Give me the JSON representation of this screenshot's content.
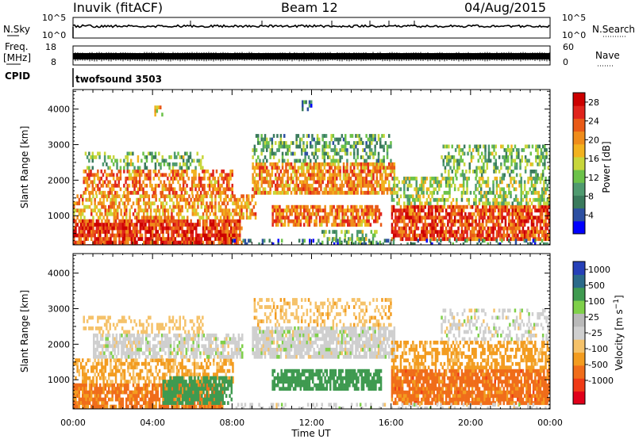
{
  "header": {
    "station": "Inuvik (fitACF)",
    "beam": "Beam 12",
    "date": "04/Aug/2015"
  },
  "strip_labels": {
    "nsky": "N.Sky",
    "nsky_top_tick": "10^5",
    "nsky_bottom_tick": "10^0",
    "nsearch": "N.Search",
    "nsearch_top_tick": "10^5",
    "nsearch_bottom_tick": "10^0",
    "freq_line1": "Freq.",
    "freq_line2": "[MHz]",
    "freq_top_tick": "18",
    "freq_bottom_tick": "8",
    "nave": "Nave",
    "nave_top_tick": "60",
    "nave_bottom_tick": "0",
    "cpid": "CPID",
    "cpid_value": "twofsound 3503"
  },
  "colors": {
    "power_scale": [
      "#0000ff",
      "#2c4fa1",
      "#3a7a5c",
      "#4f9a6f",
      "#6cc24a",
      "#c8d63b",
      "#f2b21f",
      "#ef8c1b",
      "#e95a17",
      "#e0241c",
      "#cc0000"
    ],
    "velocity_scale": [
      "#e0001a",
      "#ef3a16",
      "#f06d1a",
      "#f39c20",
      "#f5c26a",
      "#cfcfcf",
      "#b9b9b9",
      "#7fd04a",
      "#3f9a50",
      "#2b6a8a",
      "#2640b8"
    ],
    "velocity_mid": "#c4c4c4"
  },
  "chart_data": [
    {
      "type": "heatmap",
      "panel": "power",
      "ylabel": "Slant Range [km]",
      "y_ticks": [
        "1000",
        "2000",
        "3000",
        "4000"
      ],
      "ylim": [
        180,
        4550
      ],
      "x_ticks": [
        "00:00",
        "04:00",
        "08:00",
        "12:00",
        "16:00",
        "20:00",
        "00:00"
      ],
      "xlim_hours": [
        0,
        24
      ],
      "colorbar_label": "Power [dB]",
      "colorbar_ticks": [
        "4",
        "8",
        "12",
        "16",
        "20",
        "24",
        "28"
      ],
      "colorbar_range": [
        0,
        30
      ],
      "regions": [
        {
          "t0": 0.0,
          "t1": 8.5,
          "r0": 180,
          "r1": 900,
          "value": 26,
          "density": 0.85
        },
        {
          "t0": 0.0,
          "t1": 9.2,
          "r0": 900,
          "r1": 1600,
          "value": 20,
          "density": 0.6
        },
        {
          "t0": 0.5,
          "t1": 8.0,
          "r0": 1600,
          "r1": 2300,
          "value": 22,
          "density": 0.6
        },
        {
          "t0": 0.5,
          "t1": 6.5,
          "r0": 2300,
          "r1": 2800,
          "value": 11,
          "density": 0.4
        },
        {
          "t0": 9.0,
          "t1": 16.2,
          "r0": 1600,
          "r1": 2500,
          "value": 21,
          "density": 0.75
        },
        {
          "t0": 9.0,
          "t1": 16.0,
          "r0": 2500,
          "r1": 3300,
          "value": 10,
          "density": 0.45
        },
        {
          "t0": 10.0,
          "t1": 15.5,
          "r0": 750,
          "r1": 1300,
          "value": 22,
          "density": 0.75
        },
        {
          "t0": 12.5,
          "t1": 15.5,
          "r0": 250,
          "r1": 600,
          "value": 12,
          "density": 0.35
        },
        {
          "t0": 16.0,
          "t1": 24.0,
          "r0": 300,
          "r1": 1300,
          "value": 25,
          "density": 0.8
        },
        {
          "t0": 16.0,
          "t1": 24.0,
          "r0": 1300,
          "r1": 2100,
          "value": 13,
          "density": 0.55
        },
        {
          "t0": 18.5,
          "t1": 24.0,
          "r0": 2100,
          "r1": 3000,
          "value": 11,
          "density": 0.4
        },
        {
          "t0": 8.0,
          "t1": 24.0,
          "r0": 180,
          "r1": 350,
          "value": 6,
          "density": 0.25
        },
        {
          "t0": 4.0,
          "t1": 4.5,
          "r0": 3800,
          "r1": 4100,
          "value": 18,
          "density": 0.4
        },
        {
          "t0": 11.5,
          "t1": 12.0,
          "r0": 4000,
          "r1": 4250,
          "value": 6,
          "density": 0.5
        }
      ]
    },
    {
      "type": "heatmap",
      "panel": "velocity",
      "ylabel": "Slant Range [km]",
      "y_ticks": [
        "1000",
        "2000",
        "3000",
        "4000"
      ],
      "ylim": [
        180,
        4550
      ],
      "x_ticks": [
        "00:00",
        "04:00",
        "08:00",
        "12:00",
        "16:00",
        "20:00",
        "00:00"
      ],
      "xlim_hours": [
        0,
        24
      ],
      "xlabel": "Time UT",
      "colorbar_label": "Velocity [m s^-1]",
      "colorbar_ticks": [
        "-1000",
        "-500",
        "-100",
        "-25",
        "25",
        "100",
        "500",
        "1000"
      ],
      "regions": [
        {
          "t0": 0.0,
          "t1": 7.5,
          "r0": 180,
          "r1": 900,
          "value": -300,
          "density": 0.85
        },
        {
          "t0": 0.0,
          "t1": 8.0,
          "r0": 900,
          "r1": 1600,
          "value": -120,
          "density": 0.55
        },
        {
          "t0": 1.0,
          "t1": 8.5,
          "r0": 1600,
          "r1": 2300,
          "value": 0,
          "density": 0.7
        },
        {
          "t0": 0.5,
          "t1": 6.5,
          "r0": 2300,
          "r1": 2800,
          "value": -60,
          "density": 0.35
        },
        {
          "t0": 4.5,
          "t1": 8.0,
          "r0": 350,
          "r1": 1100,
          "value": 200,
          "density": 0.7
        },
        {
          "t0": 9.0,
          "t1": 16.2,
          "r0": 1600,
          "r1": 2500,
          "value": 0,
          "density": 0.8
        },
        {
          "t0": 9.0,
          "t1": 16.0,
          "r0": 2500,
          "r1": 3300,
          "value": -80,
          "density": 0.35
        },
        {
          "t0": 10.0,
          "t1": 15.5,
          "r0": 750,
          "r1": 1300,
          "value": 260,
          "density": 0.75
        },
        {
          "t0": 16.0,
          "t1": 24.0,
          "r0": 300,
          "r1": 1300,
          "value": -350,
          "density": 0.85
        },
        {
          "t0": 16.0,
          "t1": 24.0,
          "r0": 1300,
          "r1": 2100,
          "value": -150,
          "density": 0.55
        },
        {
          "t0": 18.5,
          "t1": 24.0,
          "r0": 2100,
          "r1": 3000,
          "value": 0,
          "density": 0.35
        },
        {
          "t0": 8.0,
          "t1": 24.0,
          "r0": 180,
          "r1": 350,
          "value": 0,
          "density": 0.3
        }
      ]
    }
  ]
}
